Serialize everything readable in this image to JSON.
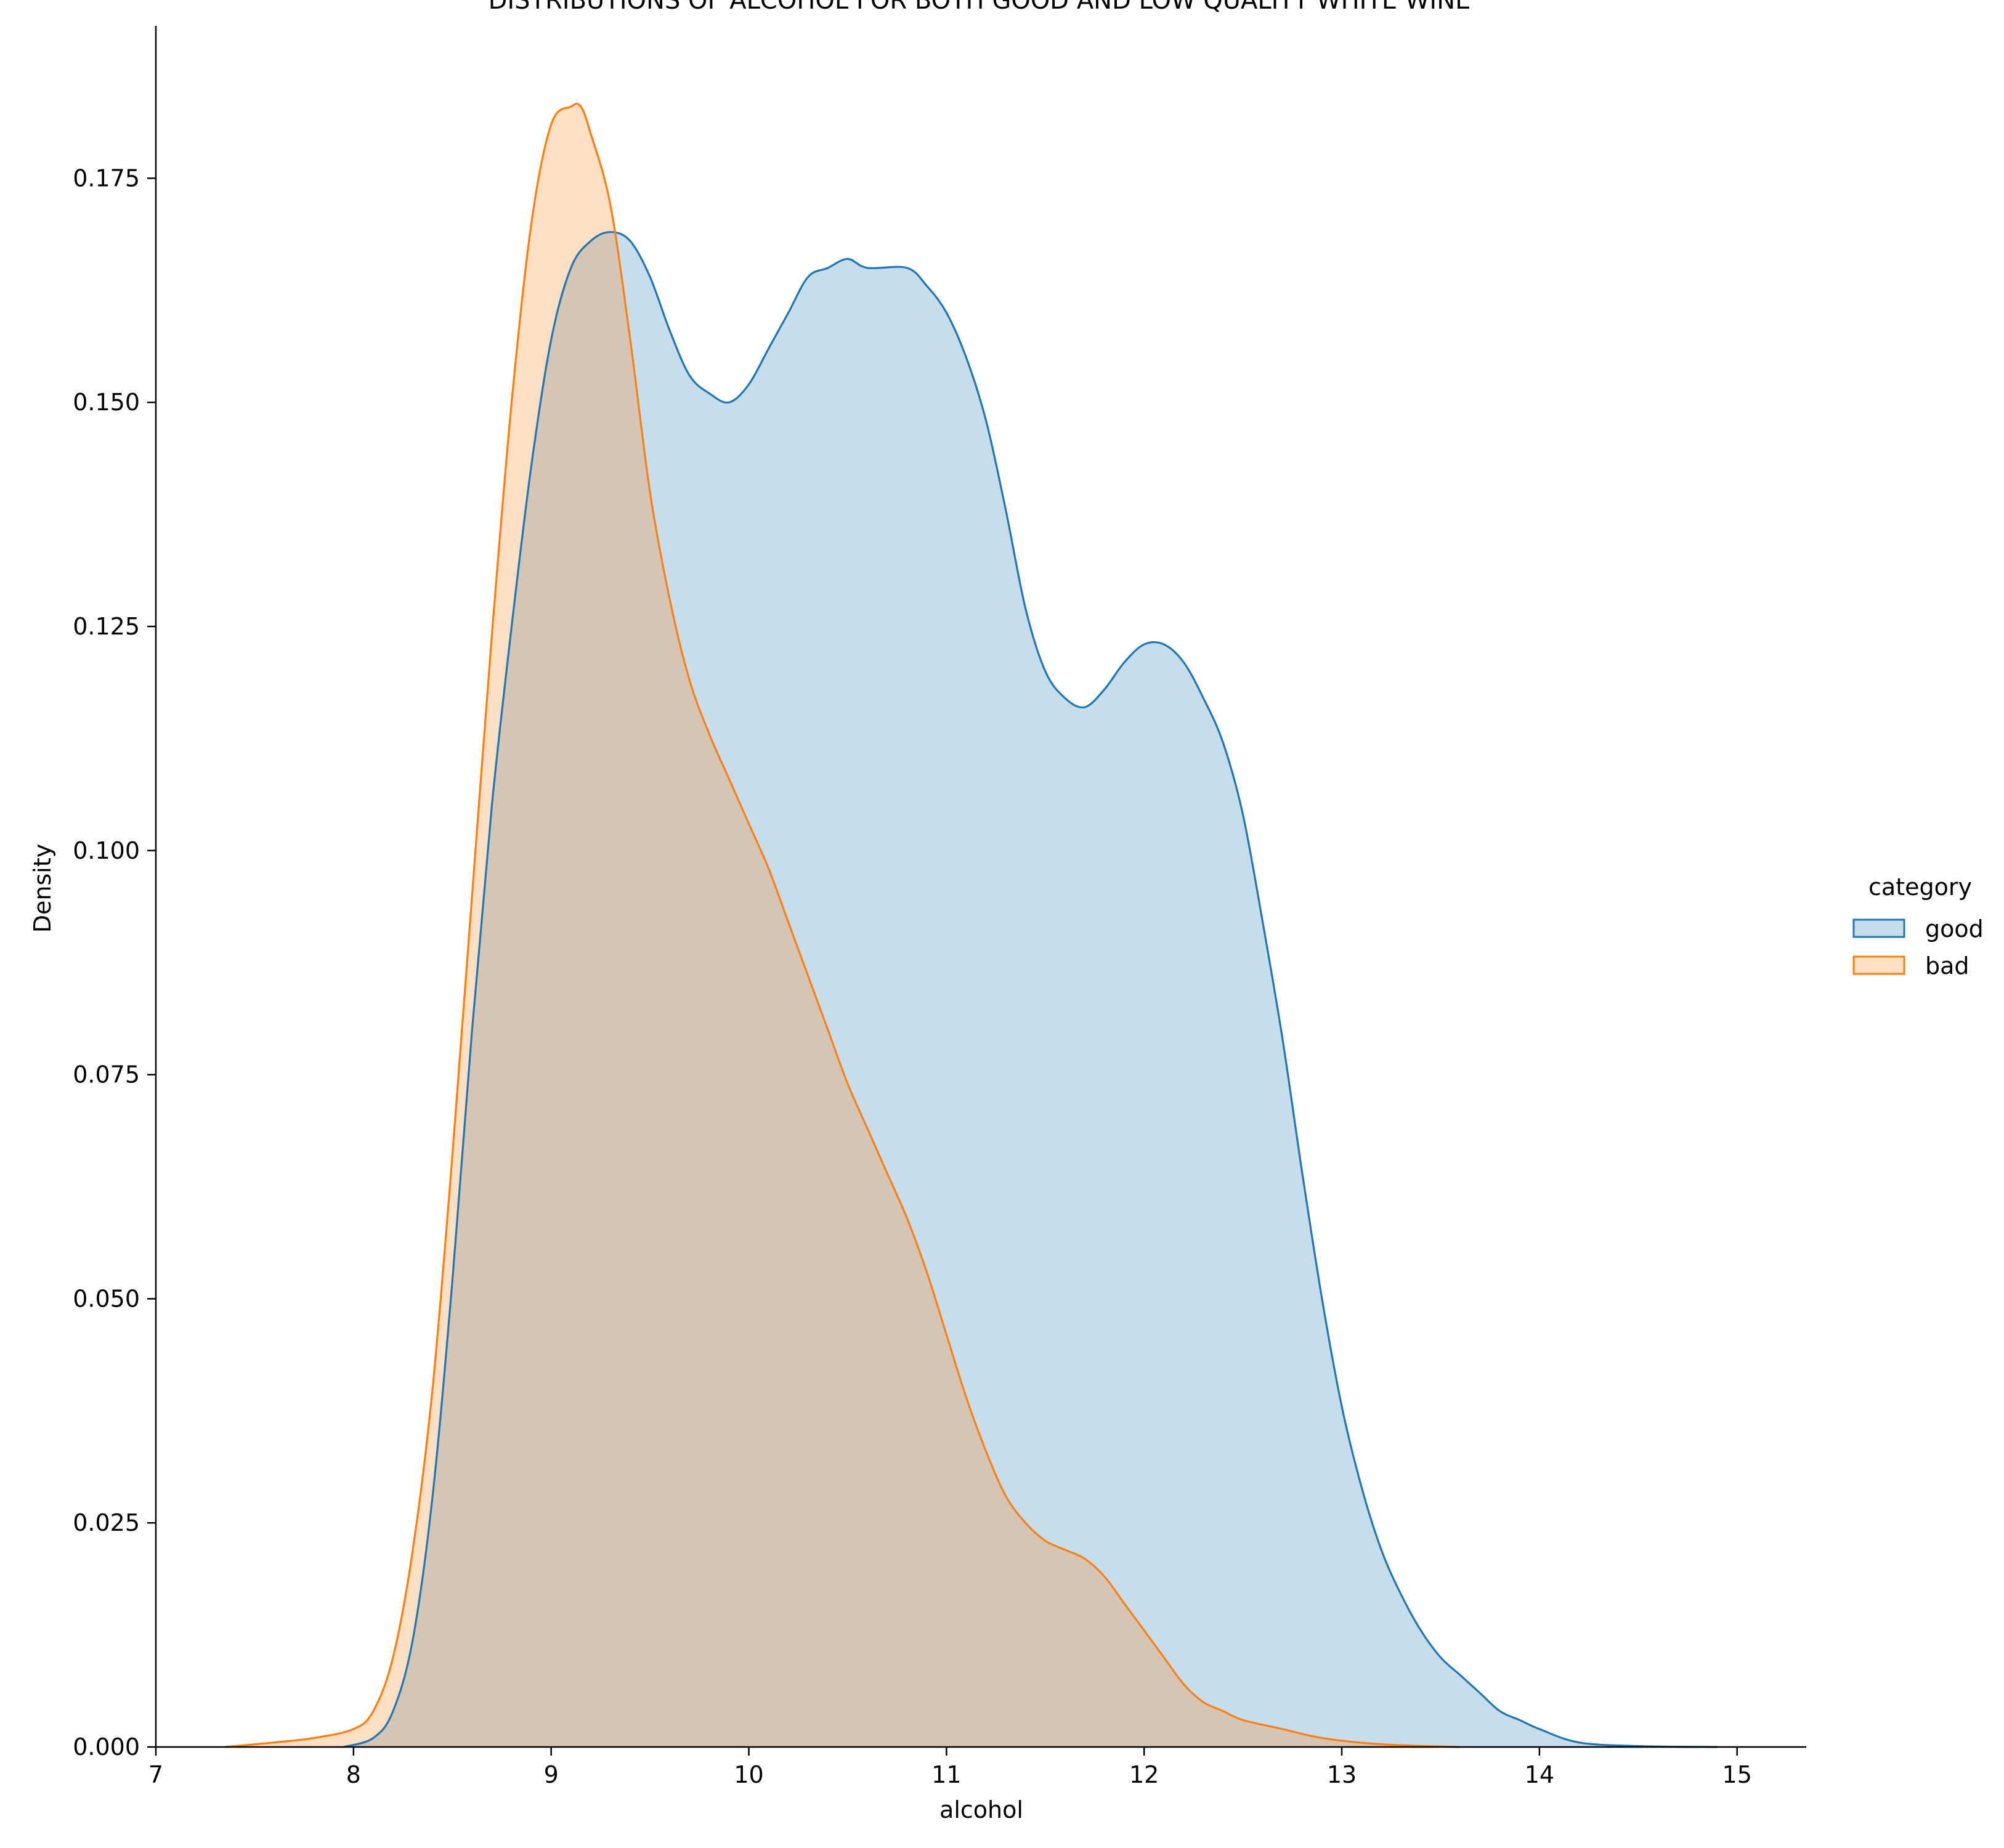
{
  "chart_data": {
    "type": "area",
    "title": "DISTRIBUTIONS OF ALCOHOL FOR BOTH GOOD AND LOW QUALITY WHITE WINE",
    "xlabel": "alcohol",
    "ylabel": "Density",
    "xlim": [
      7.0,
      15.35
    ],
    "ylim": [
      0.0,
      0.192
    ],
    "x_ticks": [
      7,
      8,
      9,
      10,
      11,
      12,
      13,
      14,
      15
    ],
    "y_ticks": [
      0.0,
      0.025,
      0.05,
      0.075,
      0.1,
      0.125,
      0.15,
      0.175
    ],
    "grid": false,
    "legend": {
      "title": "category",
      "placement": "right"
    },
    "series": [
      {
        "name": "good",
        "color": "#1f77b4",
        "points": [
          [
            7.95,
            0.0
          ],
          [
            8.1,
            0.001
          ],
          [
            8.2,
            0.004
          ],
          [
            8.3,
            0.012
          ],
          [
            8.4,
            0.028
          ],
          [
            8.5,
            0.052
          ],
          [
            8.6,
            0.08
          ],
          [
            8.7,
            0.105
          ],
          [
            8.8,
            0.125
          ],
          [
            8.9,
            0.143
          ],
          [
            9.0,
            0.157
          ],
          [
            9.1,
            0.165
          ],
          [
            9.2,
            0.168
          ],
          [
            9.3,
            0.169
          ],
          [
            9.4,
            0.168
          ],
          [
            9.5,
            0.164
          ],
          [
            9.6,
            0.158
          ],
          [
            9.7,
            0.153
          ],
          [
            9.8,
            0.151
          ],
          [
            9.9,
            0.15
          ],
          [
            10.0,
            0.152
          ],
          [
            10.1,
            0.156
          ],
          [
            10.2,
            0.16
          ],
          [
            10.3,
            0.164
          ],
          [
            10.4,
            0.165
          ],
          [
            10.5,
            0.166
          ],
          [
            10.6,
            0.165
          ],
          [
            10.8,
            0.165
          ],
          [
            10.9,
            0.163
          ],
          [
            11.0,
            0.16
          ],
          [
            11.1,
            0.155
          ],
          [
            11.2,
            0.148
          ],
          [
            11.3,
            0.138
          ],
          [
            11.4,
            0.127
          ],
          [
            11.5,
            0.12
          ],
          [
            11.6,
            0.117
          ],
          [
            11.7,
            0.116
          ],
          [
            11.8,
            0.118
          ],
          [
            11.9,
            0.121
          ],
          [
            12.0,
            0.123
          ],
          [
            12.1,
            0.123
          ],
          [
            12.2,
            0.121
          ],
          [
            12.3,
            0.117
          ],
          [
            12.4,
            0.112
          ],
          [
            12.5,
            0.104
          ],
          [
            12.6,
            0.092
          ],
          [
            12.7,
            0.079
          ],
          [
            12.8,
            0.064
          ],
          [
            12.9,
            0.05
          ],
          [
            13.0,
            0.038
          ],
          [
            13.1,
            0.029
          ],
          [
            13.2,
            0.022
          ],
          [
            13.3,
            0.017
          ],
          [
            13.4,
            0.013
          ],
          [
            13.5,
            0.01
          ],
          [
            13.6,
            0.008
          ],
          [
            13.7,
            0.006
          ],
          [
            13.8,
            0.004
          ],
          [
            13.9,
            0.003
          ],
          [
            14.0,
            0.002
          ],
          [
            14.2,
            0.0005
          ],
          [
            14.5,
            0.0001
          ],
          [
            14.9,
            0.0
          ]
        ]
      },
      {
        "name": "bad",
        "color": "#ff7f0e",
        "points": [
          [
            7.35,
            0.0
          ],
          [
            7.6,
            0.0005
          ],
          [
            7.8,
            0.001
          ],
          [
            8.0,
            0.002
          ],
          [
            8.1,
            0.004
          ],
          [
            8.2,
            0.01
          ],
          [
            8.3,
            0.022
          ],
          [
            8.4,
            0.04
          ],
          [
            8.5,
            0.066
          ],
          [
            8.6,
            0.095
          ],
          [
            8.7,
            0.124
          ],
          [
            8.8,
            0.15
          ],
          [
            8.9,
            0.17
          ],
          [
            9.0,
            0.181
          ],
          [
            9.1,
            0.183
          ],
          [
            9.15,
            0.183
          ],
          [
            9.2,
            0.18
          ],
          [
            9.3,
            0.172
          ],
          [
            9.4,
            0.157
          ],
          [
            9.5,
            0.14
          ],
          [
            9.6,
            0.128
          ],
          [
            9.7,
            0.119
          ],
          [
            9.8,
            0.113
          ],
          [
            9.9,
            0.108
          ],
          [
            10.0,
            0.103
          ],
          [
            10.1,
            0.098
          ],
          [
            10.2,
            0.092
          ],
          [
            10.3,
            0.086
          ],
          [
            10.4,
            0.08
          ],
          [
            10.5,
            0.074
          ],
          [
            10.6,
            0.069
          ],
          [
            10.7,
            0.064
          ],
          [
            10.8,
            0.059
          ],
          [
            10.9,
            0.053
          ],
          [
            11.0,
            0.046
          ],
          [
            11.1,
            0.039
          ],
          [
            11.2,
            0.033
          ],
          [
            11.3,
            0.028
          ],
          [
            11.4,
            0.025
          ],
          [
            11.5,
            0.023
          ],
          [
            11.6,
            0.022
          ],
          [
            11.7,
            0.021
          ],
          [
            11.8,
            0.019
          ],
          [
            11.9,
            0.016
          ],
          [
            12.0,
            0.013
          ],
          [
            12.1,
            0.01
          ],
          [
            12.2,
            0.007
          ],
          [
            12.3,
            0.005
          ],
          [
            12.4,
            0.004
          ],
          [
            12.5,
            0.003
          ],
          [
            12.7,
            0.002
          ],
          [
            12.9,
            0.001
          ],
          [
            13.2,
            0.0003
          ],
          [
            13.6,
            0.0
          ]
        ]
      }
    ]
  }
}
